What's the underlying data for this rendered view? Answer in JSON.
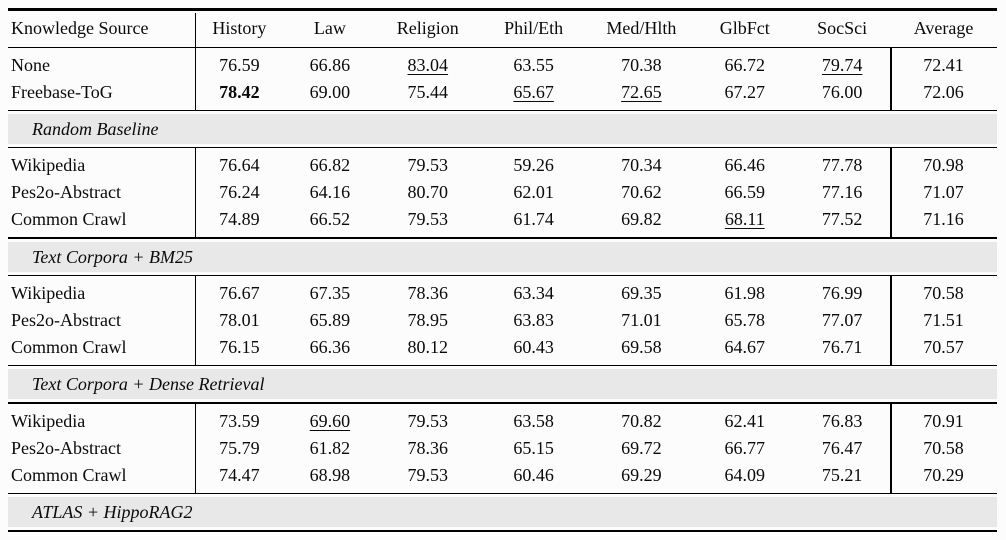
{
  "colors": {
    "page_background": "#fcfcfc",
    "section_band_background": "#e8e8e8",
    "rule_color": "#000000",
    "text_color": "#0a0a0a"
  },
  "table": {
    "columns": [
      "Knowledge Source",
      "History",
      "Law",
      "Religion",
      "Phil/Eth",
      "Med/Hlth",
      "GlbFct",
      "SocSci",
      "Average"
    ],
    "blocks": [
      {
        "type": "rows",
        "rows": [
          {
            "label": "None",
            "cells": [
              {
                "v": "76.59",
                "style": "normal"
              },
              {
                "v": "66.86",
                "style": "normal"
              },
              {
                "v": "83.04",
                "style": "underline"
              },
              {
                "v": "63.55",
                "style": "normal"
              },
              {
                "v": "70.38",
                "style": "normal"
              },
              {
                "v": "66.72",
                "style": "normal"
              },
              {
                "v": "79.74",
                "style": "underline"
              },
              {
                "v": "72.41",
                "style": "normal"
              }
            ]
          },
          {
            "label": "Freebase-ToG",
            "cells": [
              {
                "v": "78.42",
                "style": "bold"
              },
              {
                "v": "69.00",
                "style": "normal"
              },
              {
                "v": "75.44",
                "style": "normal"
              },
              {
                "v": "65.67",
                "style": "underline"
              },
              {
                "v": "72.65",
                "style": "underline"
              },
              {
                "v": "67.27",
                "style": "normal"
              },
              {
                "v": "76.00",
                "style": "normal"
              },
              {
                "v": "72.06",
                "style": "normal"
              }
            ]
          }
        ]
      },
      {
        "type": "section",
        "title": "Random Baseline"
      },
      {
        "type": "rows",
        "rows": [
          {
            "label": "Wikipedia",
            "cells": [
              {
                "v": "76.64",
                "style": "normal"
              },
              {
                "v": "66.82",
                "style": "normal"
              },
              {
                "v": "79.53",
                "style": "normal"
              },
              {
                "v": "59.26",
                "style": "normal"
              },
              {
                "v": "70.34",
                "style": "normal"
              },
              {
                "v": "66.46",
                "style": "normal"
              },
              {
                "v": "77.78",
                "style": "normal"
              },
              {
                "v": "70.98",
                "style": "normal"
              }
            ]
          },
          {
            "label": "Pes2o-Abstract",
            "cells": [
              {
                "v": "76.24",
                "style": "normal"
              },
              {
                "v": "64.16",
                "style": "normal"
              },
              {
                "v": "80.70",
                "style": "normal"
              },
              {
                "v": "62.01",
                "style": "normal"
              },
              {
                "v": "70.62",
                "style": "normal"
              },
              {
                "v": "66.59",
                "style": "normal"
              },
              {
                "v": "77.16",
                "style": "normal"
              },
              {
                "v": "71.07",
                "style": "normal"
              }
            ]
          },
          {
            "label": "Common Crawl",
            "cells": [
              {
                "v": "74.89",
                "style": "normal"
              },
              {
                "v": "66.52",
                "style": "normal"
              },
              {
                "v": "79.53",
                "style": "normal"
              },
              {
                "v": "61.74",
                "style": "normal"
              },
              {
                "v": "69.82",
                "style": "normal"
              },
              {
                "v": "68.11",
                "style": "underline"
              },
              {
                "v": "77.52",
                "style": "normal"
              },
              {
                "v": "71.16",
                "style": "normal"
              }
            ]
          }
        ]
      },
      {
        "type": "section",
        "title": "Text Corpora + BM25"
      },
      {
        "type": "rows",
        "rows": [
          {
            "label": "Wikipedia",
            "cells": [
              {
                "v": "76.67",
                "style": "normal"
              },
              {
                "v": "67.35",
                "style": "normal"
              },
              {
                "v": "78.36",
                "style": "normal"
              },
              {
                "v": "63.34",
                "style": "normal"
              },
              {
                "v": "69.35",
                "style": "normal"
              },
              {
                "v": "61.98",
                "style": "normal"
              },
              {
                "v": "76.99",
                "style": "normal"
              },
              {
                "v": "70.58",
                "style": "normal"
              }
            ]
          },
          {
            "label": "Pes2o-Abstract",
            "cells": [
              {
                "v": "78.01",
                "style": "normal"
              },
              {
                "v": "65.89",
                "style": "normal"
              },
              {
                "v": "78.95",
                "style": "normal"
              },
              {
                "v": "63.83",
                "style": "normal"
              },
              {
                "v": "71.01",
                "style": "normal"
              },
              {
                "v": "65.78",
                "style": "normal"
              },
              {
                "v": "77.07",
                "style": "normal"
              },
              {
                "v": "71.51",
                "style": "normal"
              }
            ]
          },
          {
            "label": "Common Crawl",
            "cells": [
              {
                "v": "76.15",
                "style": "normal"
              },
              {
                "v": "66.36",
                "style": "normal"
              },
              {
                "v": "80.12",
                "style": "normal"
              },
              {
                "v": "60.43",
                "style": "normal"
              },
              {
                "v": "69.58",
                "style": "normal"
              },
              {
                "v": "64.67",
                "style": "normal"
              },
              {
                "v": "76.71",
                "style": "normal"
              },
              {
                "v": "70.57",
                "style": "normal"
              }
            ]
          }
        ]
      },
      {
        "type": "section",
        "title": "Text Corpora + Dense Retrieval"
      },
      {
        "type": "rows",
        "rows": [
          {
            "label": "Wikipedia",
            "cells": [
              {
                "v": "73.59",
                "style": "normal"
              },
              {
                "v": "69.60",
                "style": "underline"
              },
              {
                "v": "79.53",
                "style": "normal"
              },
              {
                "v": "63.58",
                "style": "normal"
              },
              {
                "v": "70.82",
                "style": "normal"
              },
              {
                "v": "62.41",
                "style": "normal"
              },
              {
                "v": "76.83",
                "style": "normal"
              },
              {
                "v": "70.91",
                "style": "normal"
              }
            ]
          },
          {
            "label": "Pes2o-Abstract",
            "cells": [
              {
                "v": "75.79",
                "style": "normal"
              },
              {
                "v": "61.82",
                "style": "normal"
              },
              {
                "v": "78.36",
                "style": "normal"
              },
              {
                "v": "65.15",
                "style": "normal"
              },
              {
                "v": "69.72",
                "style": "normal"
              },
              {
                "v": "66.77",
                "style": "normal"
              },
              {
                "v": "76.47",
                "style": "normal"
              },
              {
                "v": "70.58",
                "style": "normal"
              }
            ]
          },
          {
            "label": "Common Crawl",
            "cells": [
              {
                "v": "74.47",
                "style": "normal"
              },
              {
                "v": "68.98",
                "style": "normal"
              },
              {
                "v": "79.53",
                "style": "normal"
              },
              {
                "v": "60.46",
                "style": "normal"
              },
              {
                "v": "69.29",
                "style": "normal"
              },
              {
                "v": "64.09",
                "style": "normal"
              },
              {
                "v": "75.21",
                "style": "normal"
              },
              {
                "v": "70.29",
                "style": "normal"
              }
            ]
          }
        ]
      },
      {
        "type": "section",
        "title": "ATLAS + HippoRAG2"
      }
    ]
  }
}
